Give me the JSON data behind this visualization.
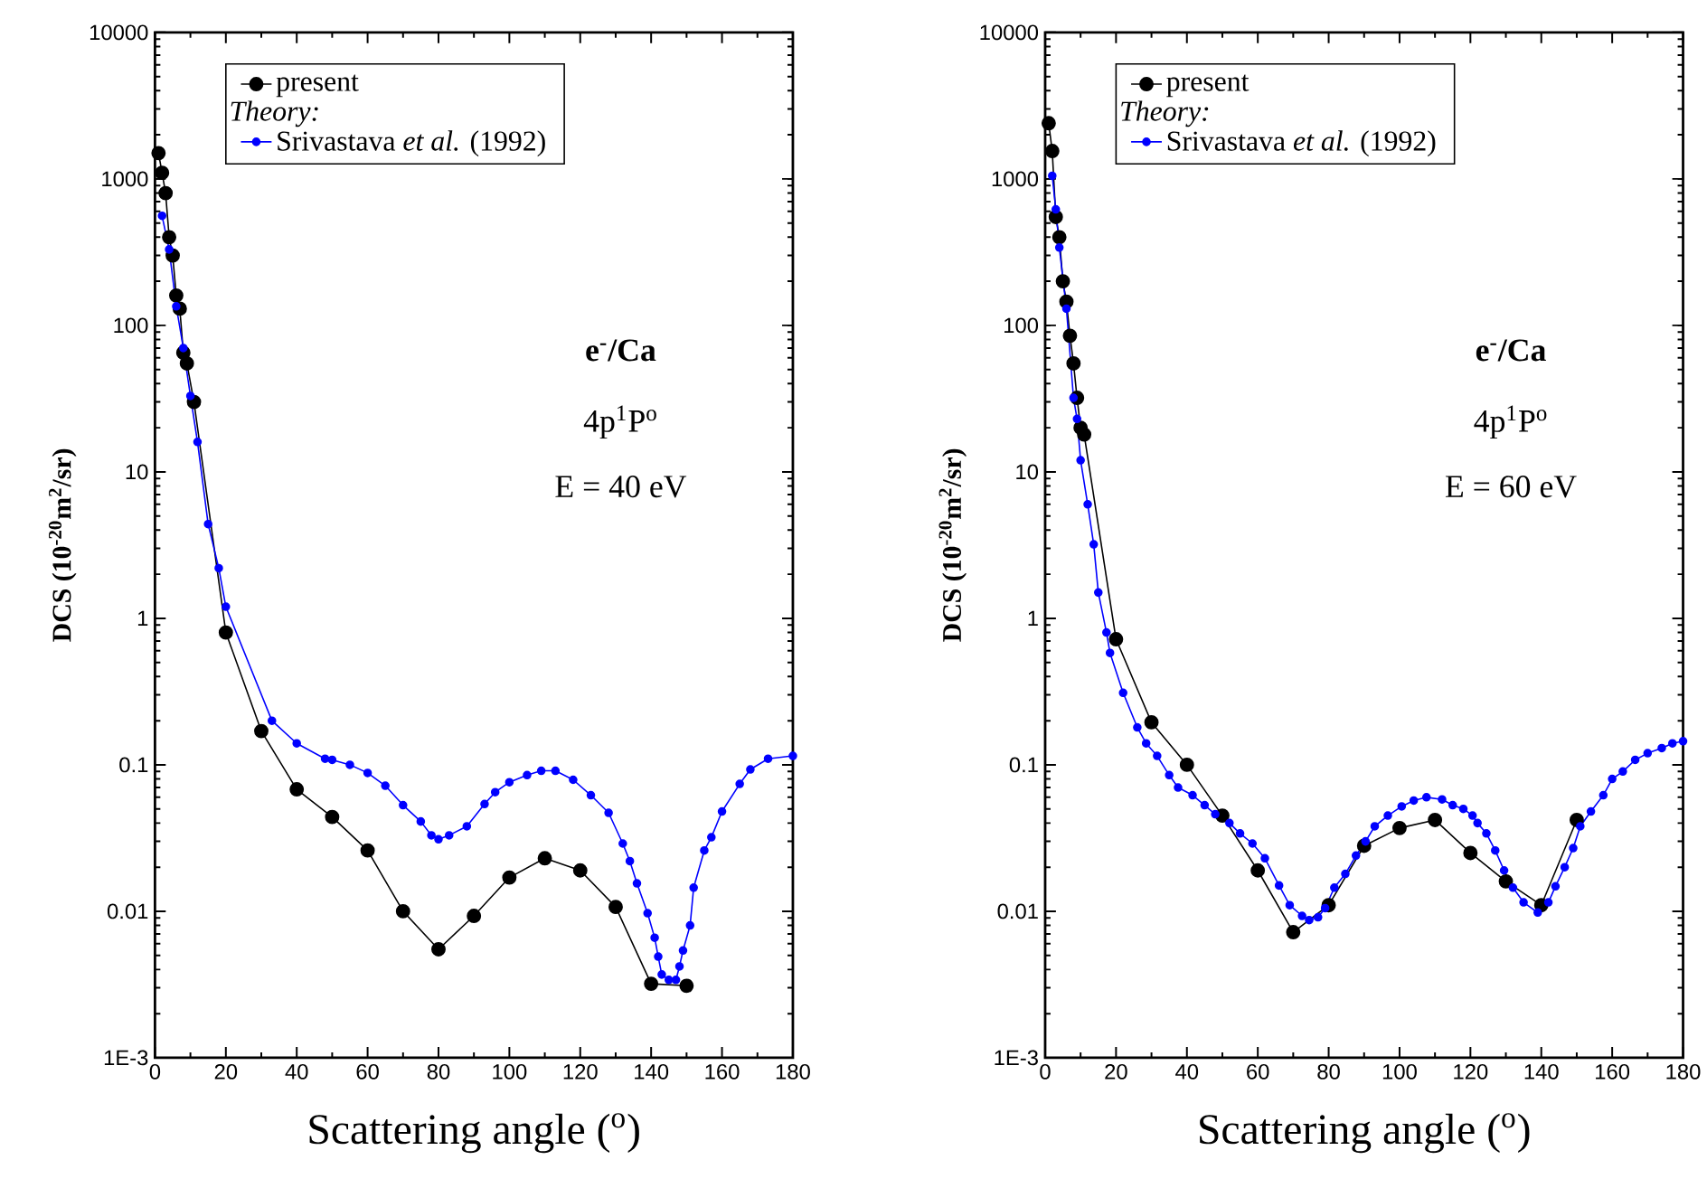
{
  "chart_data": [
    {
      "type": "line",
      "xlabel": "Scattering angle ($^{o}$)",
      "ylabel": "DCS (10$^{-20}$m$^{2}$/sr)",
      "legend_title": "*Theory:*",
      "log": "y",
      "legend": "top",
      "marker": "circle",
      "line_style": "solid",
      "xlim": [
        0,
        180
      ],
      "xticks": [
        0,
        20,
        40,
        60,
        80,
        100,
        120,
        140,
        160,
        180
      ],
      "ylim": [
        0.001,
        10000
      ],
      "yticks": [
        {
          "value": 0.001,
          "label": "1E-3"
        },
        0.01,
        0.1,
        1,
        10,
        100,
        1000,
        10000
      ],
      "annotations": [
        "e$^{-}$/Ca",
        "4p$^{1}$P$^{o}$",
        "E = 40 eV"
      ],
      "series": [
        {
          "name": "present",
          "color": "#000000",
          "x": [
            1,
            2,
            3,
            4,
            5,
            6,
            7,
            8,
            9,
            10,
            11,
            20,
            30,
            40,
            50,
            60,
            70,
            80,
            90,
            100,
            110,
            120,
            130,
            140,
            150
          ],
          "values": [
            1500,
            1100,
            800,
            400,
            300,
            160,
            130,
            65,
            55,
            null,
            30,
            0.8,
            0.17,
            0.068,
            0.044,
            0.026,
            0.01,
            0.0055,
            0.0093,
            0.017,
            0.023,
            0.019,
            0.0107,
            0.0032,
            0.0031
          ]
        },
        {
          "name": "Srivastava *et al.* (1992)",
          "color": "#0000ff",
          "x": [
            2,
            4,
            6,
            8,
            10,
            12,
            15,
            18,
            20,
            33,
            40,
            48,
            50,
            55,
            60,
            65,
            70,
            75,
            78,
            80,
            83,
            88,
            93,
            96,
            100,
            105,
            109,
            113,
            118,
            123,
            128,
            132,
            134,
            136,
            139,
            141,
            142,
            143,
            145,
            147,
            148,
            149,
            151,
            152,
            155,
            157,
            160,
            165,
            168,
            173,
            180
          ],
          "values": [
            560,
            330,
            135,
            70,
            33,
            16,
            4.4,
            2.2,
            1.2,
            0.2,
            0.14,
            0.11,
            0.108,
            0.1,
            0.088,
            0.072,
            0.053,
            0.041,
            0.033,
            0.031,
            0.033,
            0.038,
            0.054,
            0.065,
            0.076,
            0.085,
            0.091,
            0.091,
            0.079,
            0.062,
            0.047,
            0.029,
            0.022,
            0.0155,
            0.0097,
            0.0066,
            0.0049,
            0.0037,
            0.0034,
            0.0034,
            0.0042,
            0.0054,
            0.008,
            0.0145,
            0.026,
            0.032,
            0.048,
            0.074,
            0.093,
            0.11,
            0.115
          ]
        }
      ]
    },
    {
      "type": "line",
      "xlabel": "Scattering angle ($^{o}$)",
      "ylabel": "DCS (10$^{-20}$m$^{2}$/sr)",
      "legend_title": "*Theory:*",
      "log": "y",
      "legend": "top",
      "marker": "circle",
      "line_style": "solid",
      "xlim": [
        0,
        180
      ],
      "xticks": [
        0,
        20,
        40,
        60,
        80,
        100,
        120,
        140,
        160,
        180
      ],
      "ylim": [
        0.001,
        10000
      ],
      "yticks": [
        {
          "value": 0.001,
          "label": "1E-3"
        },
        0.01,
        0.1,
        1,
        10,
        100,
        1000,
        10000
      ],
      "annotations": [
        "e$^{-}$/Ca",
        "4p$^{1}$P$^{o}$",
        "E = 60 eV"
      ],
      "series": [
        {
          "name": "present",
          "color": "#000000",
          "x": [
            1,
            2,
            3,
            4,
            5,
            6,
            7,
            8,
            9,
            10,
            11,
            20,
            30,
            40,
            50,
            60,
            70,
            80,
            90,
            100,
            110,
            120,
            130,
            140,
            150
          ],
          "values": [
            2400,
            1550,
            550,
            400,
            200,
            145,
            85,
            55,
            32,
            20,
            18,
            0.72,
            0.195,
            0.1,
            0.045,
            0.019,
            0.0072,
            0.011,
            0.028,
            0.037,
            0.042,
            0.025,
            0.016,
            0.011,
            0.042
          ]
        },
        {
          "name": "Srivastava *et al.* (1992)",
          "color": "#0000ff",
          "x": [
            2,
            3,
            4,
            6,
            8,
            9,
            10,
            12,
            13.7,
            15,
            17.3,
            18.3,
            22,
            26,
            28.5,
            31.6,
            35,
            37.5,
            41.6,
            45,
            48,
            52,
            55,
            58.5,
            62,
            66,
            69,
            72.5,
            74.5,
            77,
            79,
            81.6,
            84.7,
            87.7,
            90.4,
            93,
            96.7,
            100.6,
            104,
            107.6,
            112,
            115,
            118,
            120.6,
            122,
            124.5,
            127,
            129.5,
            132,
            135,
            139,
            142,
            144,
            146.6,
            149,
            151,
            154,
            157.5,
            160,
            163,
            166.5,
            170,
            174,
            177,
            180
          ],
          "values": [
            1050,
            620,
            340,
            130,
            32,
            23,
            12,
            6,
            3.2,
            1.5,
            0.8,
            0.58,
            0.31,
            0.18,
            0.14,
            0.115,
            0.085,
            0.07,
            0.062,
            0.053,
            0.046,
            0.04,
            0.034,
            0.029,
            0.023,
            0.015,
            0.011,
            0.0093,
            0.0087,
            0.0091,
            0.0105,
            0.0145,
            0.018,
            0.024,
            0.03,
            0.038,
            0.045,
            0.052,
            0.057,
            0.06,
            0.058,
            0.053,
            0.05,
            0.045,
            0.04,
            0.034,
            0.026,
            0.019,
            0.0145,
            0.0115,
            0.0098,
            0.0115,
            0.0148,
            0.02,
            0.027,
            0.038,
            0.048,
            0.062,
            0.08,
            0.09,
            0.108,
            0.12,
            0.13,
            0.14,
            0.145
          ]
        }
      ]
    }
  ]
}
